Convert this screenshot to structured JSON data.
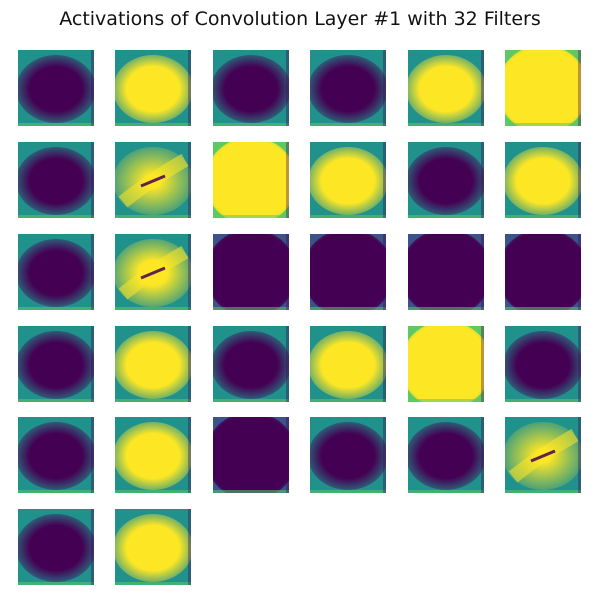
{
  "title": "Activations of Convolution Layer #1 with 32 Filters",
  "colors": {
    "dark": "#440154",
    "mid": "#21918c",
    "bright": "#fde725",
    "mid_blue": "#3b528b",
    "green": "#5ec962"
  },
  "chart_data": {
    "type": "heatmap",
    "title": "Activations of Convolution Layer #1 with 32 Filters",
    "layout": {
      "rows": 6,
      "cols": 6,
      "panels_shown": 32,
      "axes": "off"
    },
    "colormap": "viridis",
    "panels": [
      {
        "index": 1,
        "pattern": "dark-blob",
        "level": 0.02
      },
      {
        "index": 2,
        "pattern": "bright-blob",
        "level": 0.88
      },
      {
        "index": 3,
        "pattern": "dark-blob",
        "level": 0.05
      },
      {
        "index": 4,
        "pattern": "dark-blob",
        "level": 0.03
      },
      {
        "index": 5,
        "pattern": "bright-blob",
        "level": 0.85
      },
      {
        "index": 6,
        "pattern": "bright-fill",
        "level": 0.96
      },
      {
        "index": 7,
        "pattern": "dark-blob",
        "level": 0.12
      },
      {
        "index": 8,
        "pattern": "diagonal",
        "level": 0.5
      },
      {
        "index": 9,
        "pattern": "bright-fill",
        "level": 0.97
      },
      {
        "index": 10,
        "pattern": "bright-blob",
        "level": 0.86
      },
      {
        "index": 11,
        "pattern": "dark-blob",
        "level": 0.18
      },
      {
        "index": 12,
        "pattern": "bright-blob",
        "level": 0.82
      },
      {
        "index": 13,
        "pattern": "dark-blob",
        "level": 0.07
      },
      {
        "index": 14,
        "pattern": "diagonal-bright",
        "level": 0.75
      },
      {
        "index": 15,
        "pattern": "dark-fill",
        "level": 0.02
      },
      {
        "index": 16,
        "pattern": "dark-fill",
        "level": 0.01
      },
      {
        "index": 17,
        "pattern": "dark-fill",
        "level": 0.02
      },
      {
        "index": 18,
        "pattern": "dark-fill",
        "level": 0.03
      },
      {
        "index": 19,
        "pattern": "dark-blob",
        "level": 0.12
      },
      {
        "index": 20,
        "pattern": "bright-blob",
        "level": 0.8
      },
      {
        "index": 21,
        "pattern": "dark-blob",
        "level": 0.1
      },
      {
        "index": 22,
        "pattern": "bright-blob",
        "level": 0.88
      },
      {
        "index": 23,
        "pattern": "bright-fill",
        "level": 0.96
      },
      {
        "index": 24,
        "pattern": "dark-blob",
        "level": 0.2
      },
      {
        "index": 25,
        "pattern": "dark-blob",
        "level": 0.1
      },
      {
        "index": 26,
        "pattern": "bright-blob",
        "level": 0.86
      },
      {
        "index": 27,
        "pattern": "dark-fill",
        "level": 0.02
      },
      {
        "index": 28,
        "pattern": "dark-blob",
        "level": 0.04
      },
      {
        "index": 29,
        "pattern": "dark-blob",
        "level": 0.22
      },
      {
        "index": 30,
        "pattern": "diagonal",
        "level": 0.5
      },
      {
        "index": 31,
        "pattern": "dark-blob",
        "level": 0.12
      },
      {
        "index": 32,
        "pattern": "bright-blob",
        "level": 0.84
      }
    ]
  }
}
